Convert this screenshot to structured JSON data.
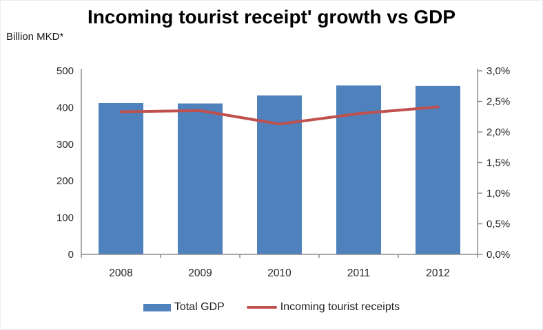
{
  "title": "Incoming tourist receipt' growth vs GDP",
  "unit_label": "Billion MKD*",
  "legend": {
    "items": [
      {
        "label": "Total GDP",
        "marker": "bar-swatch"
      },
      {
        "label": "Incoming tourist receipts",
        "marker": "line-swatch"
      }
    ]
  },
  "colors": {
    "bar": "#4f81bd",
    "line": "#c0504d",
    "axis": "#8c8c8c",
    "tick_text": "#262626",
    "title_text": "#000000"
  },
  "chart_data": {
    "type": "bar",
    "subtype": "combo-bar-line-dual-axis",
    "title": "Incoming tourist receipt' growth vs GDP",
    "categories": [
      "2008",
      "2009",
      "2010",
      "2011",
      "2012"
    ],
    "series": [
      {
        "name": "Total GDP",
        "type": "bar",
        "axis": "left",
        "values": [
          412,
          411,
          433,
          460,
          459
        ]
      },
      {
        "name": "Incoming tourist receipts",
        "type": "line",
        "axis": "right",
        "values": [
          2.33,
          2.35,
          2.13,
          2.3,
          2.41
        ]
      }
    ],
    "left_axis": {
      "label": "Billion MKD*",
      "min": 0,
      "max": 500,
      "tick_step": 100,
      "tick_labels": [
        "0",
        "100",
        "200",
        "300",
        "400",
        "500"
      ]
    },
    "right_axis": {
      "min": 0,
      "max": 3,
      "tick_step": 0.5,
      "tick_labels": [
        "0,0%",
        "0,5%",
        "1,0%",
        "1,5%",
        "2,0%",
        "2,5%",
        "3,0%"
      ]
    },
    "grid": false,
    "legend_position": "bottom"
  }
}
